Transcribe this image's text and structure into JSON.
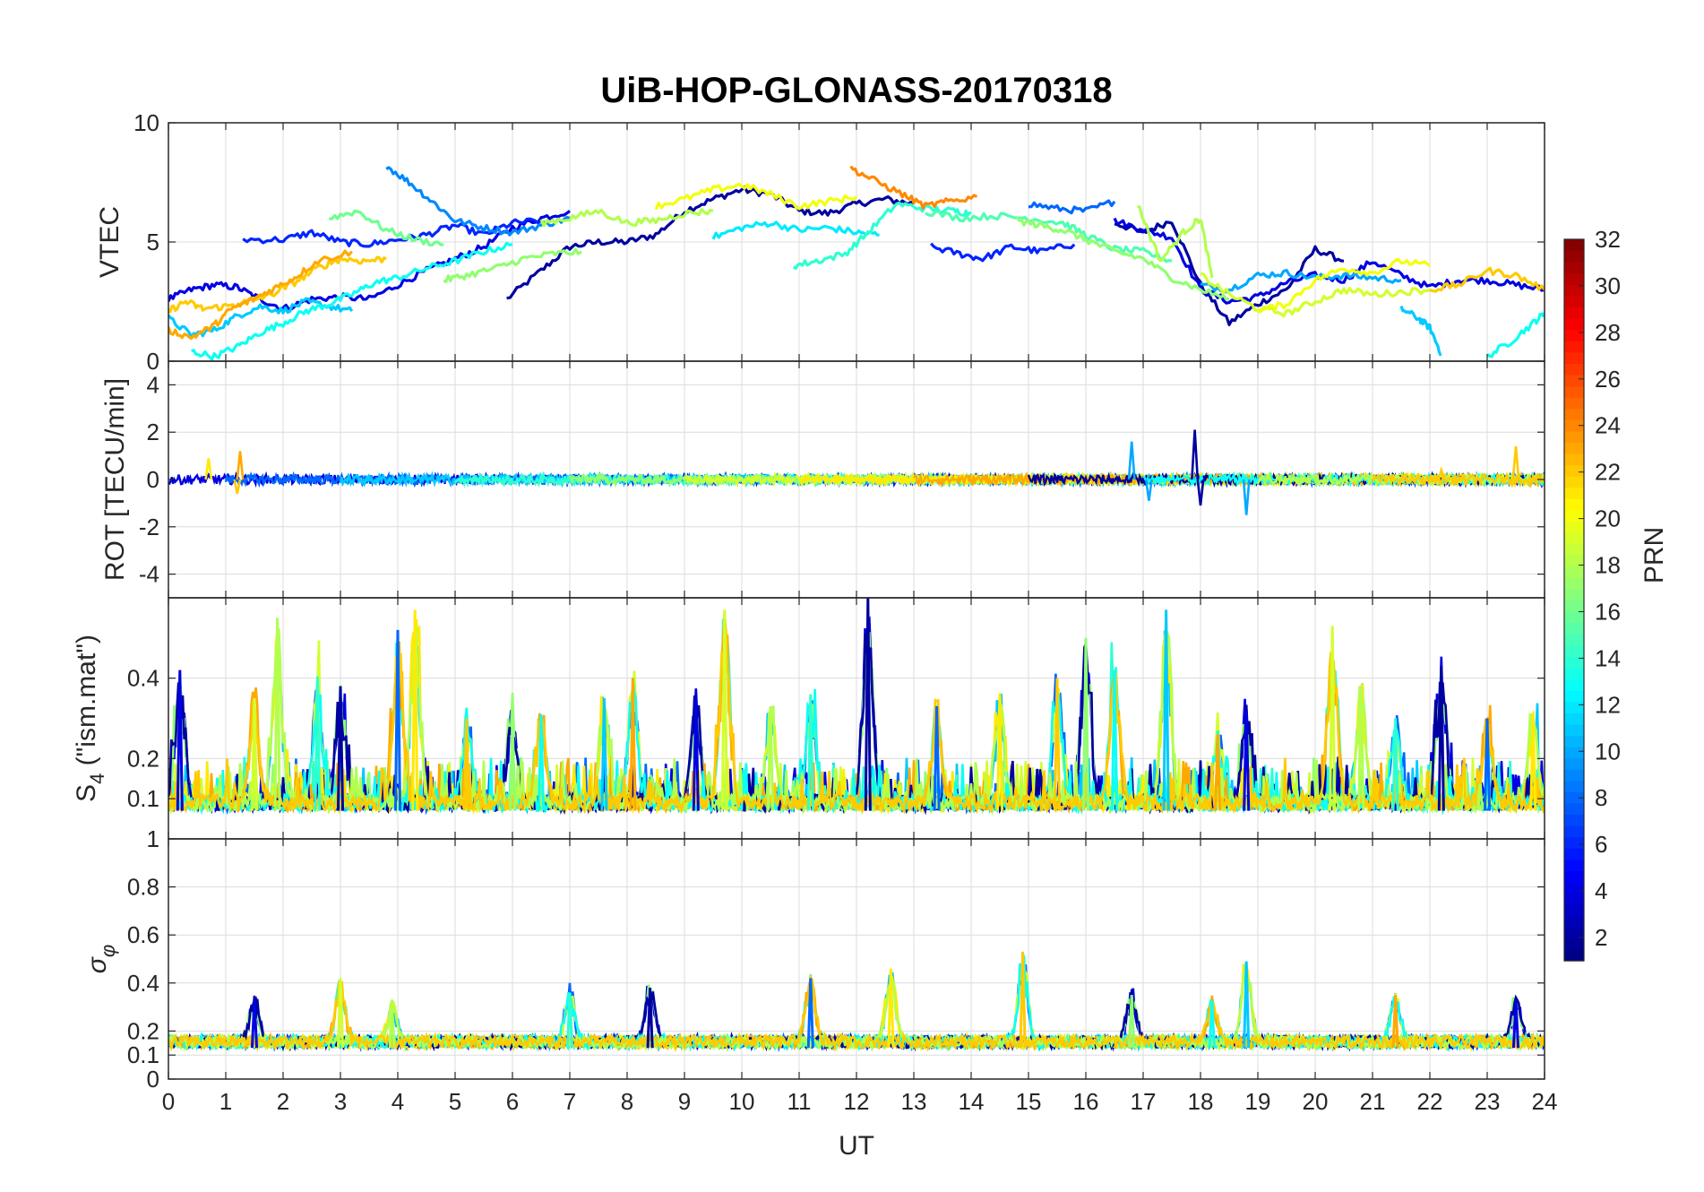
{
  "chart_data": {
    "type": "line",
    "title": "UiB-HOP-GLONASS-20170318",
    "xlabel": "UT",
    "x_ticks": [
      "0",
      "1",
      "2",
      "3",
      "4",
      "5",
      "6",
      "7",
      "8",
      "9",
      "10",
      "11",
      "12",
      "13",
      "14",
      "15",
      "16",
      "17",
      "18",
      "19",
      "20",
      "21",
      "22",
      "23",
      "24"
    ],
    "xlim": [
      0,
      24
    ],
    "colorbar": {
      "label": "PRN",
      "range": [
        1,
        32
      ],
      "ticks": [
        "2",
        "4",
        "6",
        "8",
        "10",
        "12",
        "14",
        "16",
        "18",
        "20",
        "22",
        "24",
        "26",
        "28",
        "30",
        "32"
      ],
      "colormap": "jet"
    },
    "panels": [
      {
        "name": "vtec",
        "ylabel": "VTEC",
        "ylim": [
          0,
          10
        ],
        "yticks": [
          0,
          5,
          10
        ],
        "ytick_labels": [
          "0",
          "5",
          "10"
        ],
        "series": [
          {
            "prn": 2,
            "x": [
              5.9,
              6.5,
              7,
              7.5,
              8,
              8.5,
              9,
              9.5,
              10,
              10.5,
              11,
              11.5,
              12,
              12.5,
              13
            ],
            "y": [
              2.6,
              3.8,
              4.8,
              5.0,
              5.0,
              5.3,
              6.3,
              6.8,
              7.2,
              7.0,
              6.3,
              6.2,
              6.6,
              6.8,
              6.6
            ]
          },
          {
            "prn": 2,
            "x": [
              16.5,
              17,
              17.5,
              18,
              18.5,
              19,
              19.5,
              20,
              20.5
            ],
            "y": [
              5.8,
              5.4,
              5.9,
              3.2,
              1.6,
              2.4,
              3.0,
              4.7,
              4.2
            ]
          },
          {
            "prn": 4,
            "x": [
              0,
              0.4,
              0.8,
              1.2,
              1.6,
              2,
              2.5,
              3,
              3.5,
              4,
              4.5,
              5,
              5.5,
              6,
              6.5,
              7
            ],
            "y": [
              2.6,
              3.0,
              3.2,
              3.1,
              2.6,
              2.2,
              2.6,
              2.7,
              2.6,
              3.2,
              3.8,
              4.3,
              4.8,
              5.6,
              6.0,
              6.3
            ]
          },
          {
            "prn": 4,
            "x": [
              16.5,
              17,
              17.5,
              18,
              18.5,
              19,
              19.5,
              20,
              20.5,
              21,
              21.5,
              22,
              22.5,
              23,
              23.5,
              24
            ],
            "y": [
              5.9,
              5.5,
              5.2,
              3.0,
              2.5,
              2.7,
              3.3,
              3.6,
              3.4,
              4.2,
              3.6,
              3.1,
              3.4,
              3.4,
              3.2,
              3.0
            ]
          },
          {
            "prn": 6,
            "x": [
              1.3,
              2,
              2.5,
              3,
              3.5,
              4,
              4.5,
              5,
              5.5,
              6,
              6.5
            ],
            "y": [
              5.1,
              5.1,
              5.4,
              5.0,
              4.9,
              5.1,
              5.3,
              5.7,
              5.3,
              5.8,
              5.9
            ]
          },
          {
            "prn": 6,
            "x": [
              13.3,
              13.8,
              14.2,
              14.7,
              15.2,
              15.8
            ],
            "y": [
              4.8,
              4.5,
              4.3,
              4.8,
              4.6,
              4.9
            ]
          },
          {
            "prn": 8,
            "x": [
              15,
              15.5,
              16,
              16.5
            ],
            "y": [
              6.6,
              6.4,
              6.3,
              6.7
            ]
          },
          {
            "prn": 9,
            "x": [
              3.8,
              4.2,
              4.6,
              5,
              5.5,
              6,
              6.5,
              7
            ],
            "y": [
              8.2,
              7.5,
              6.7,
              5.9,
              5.6,
              5.4,
              5.7,
              6.0
            ]
          },
          {
            "prn": 10,
            "x": [
              18,
              18.5,
              19,
              19.5,
              20,
              20.5,
              21,
              21.5
            ],
            "y": [
              3.2,
              3.0,
              3.6,
              3.7,
              3.5,
              3.6,
              3.5,
              3.4
            ]
          },
          {
            "prn": 11,
            "x": [
              0,
              0.4,
              0.8,
              1.2,
              1.6,
              2,
              2.4,
              2.8,
              3.2
            ],
            "y": [
              1.8,
              1.1,
              1.3,
              1.9,
              2.3,
              2.1,
              2.5,
              2.3,
              2.1
            ]
          },
          {
            "prn": 11,
            "x": [
              21.5,
              21.8,
              22,
              22.2
            ],
            "y": [
              2.2,
              1.8,
              1.4,
              0.3
            ]
          },
          {
            "prn": 12,
            "x": [
              9.5,
              10,
              10.5,
              11,
              11.5,
              12,
              12.4
            ],
            "y": [
              5.2,
              5.6,
              5.8,
              5.5,
              5.6,
              5.4,
              5.3
            ]
          },
          {
            "prn": 13,
            "x": [
              0.4,
              0.8,
              1.2,
              1.6,
              2,
              2.4,
              2.8,
              3.2,
              3.6,
              4,
              4.5,
              5,
              5.5,
              6
            ],
            "y": [
              0.4,
              0.2,
              0.6,
              1.2,
              1.6,
              2.1,
              2.4,
              2.8,
              3.3,
              3.5,
              3.9,
              4.2,
              4.6,
              4.9
            ]
          },
          {
            "prn": 13,
            "x": [
              23,
              23.4,
              23.8,
              24
            ],
            "y": [
              0.2,
              0.8,
              1.6,
              2.0
            ]
          },
          {
            "prn": 14,
            "x": [
              10.9,
              11.3,
              11.8,
              12.2,
              12.7,
              13.2,
              13.7,
              14
            ],
            "y": [
              4.0,
              4.2,
              4.5,
              5.4,
              6.6,
              6.4,
              6.3,
              6.2
            ]
          },
          {
            "prn": 15,
            "x": [
              13.2,
              13.8,
              14.4,
              15,
              15.6,
              16,
              16.5,
              17,
              17.5
            ],
            "y": [
              6.3,
              6.0,
              6.1,
              6.0,
              5.8,
              5.3,
              4.7,
              4.6,
              4.2
            ]
          },
          {
            "prn": 16,
            "x": [
              2.8,
              3.3,
              3.8,
              4.3,
              4.8
            ],
            "y": [
              6.0,
              6.3,
              5.5,
              5.1,
              4.9
            ]
          },
          {
            "prn": 17,
            "x": [
              4.8,
              5.2,
              5.7,
              6.2,
              6.7,
              7.2
            ],
            "y": [
              3.4,
              3.6,
              3.9,
              4.3,
              4.5,
              4.6
            ]
          },
          {
            "prn": 17,
            "x": [
              14.8,
              15.2,
              15.6,
              16,
              16.5,
              17,
              17.5,
              18,
              18.5
            ],
            "y": [
              5.9,
              5.7,
              5.5,
              5.1,
              4.6,
              4.3,
              3.5,
              3.0,
              2.6
            ]
          },
          {
            "prn": 18,
            "x": [
              6.5,
              7,
              7.5,
              8,
              8.5,
              9,
              9.5
            ],
            "y": [
              5.8,
              6.0,
              6.3,
              5.8,
              5.9,
              6.2,
              6.3
            ]
          },
          {
            "prn": 18,
            "x": [
              16.9,
              17.3,
              17.7,
              18,
              18.2
            ],
            "y": [
              6.6,
              4.2,
              5.4,
              6.0,
              3.5
            ]
          },
          {
            "prn": 19,
            "x": [
              18,
              18.5,
              19,
              19.5,
              20,
              20.5,
              21,
              21.5,
              22
            ],
            "y": [
              3.6,
              2.8,
              2.2,
              2.0,
              2.5,
              3.0,
              2.8,
              2.9,
              3.0
            ]
          },
          {
            "prn": 20,
            "x": [
              8.5,
              9,
              9.5,
              10,
              10.5,
              11,
              11.5,
              12
            ],
            "y": [
              6.5,
              6.8,
              7.2,
              7.4,
              7.0,
              6.5,
              6.7,
              6.9
            ]
          },
          {
            "prn": 20,
            "x": [
              19,
              19.5,
              20,
              20.5,
              21,
              21.5,
              22
            ],
            "y": [
              2.1,
              2.4,
              3.4,
              3.9,
              3.7,
              4.2,
              4.0
            ]
          },
          {
            "prn": 22,
            "x": [
              0,
              0.3,
              0.6,
              1,
              1.4,
              1.8,
              2.2,
              2.6,
              3,
              3.4,
              3.8
            ],
            "y": [
              2.1,
              2.5,
              2.2,
              2.3,
              2.5,
              2.8,
              3.3,
              3.9,
              4.3,
              4.2,
              4.3
            ]
          },
          {
            "prn": 22,
            "x": [
              22,
              22.5,
              23,
              23.5,
              24
            ],
            "y": [
              3.0,
              3.2,
              3.8,
              3.6,
              3.0
            ]
          },
          {
            "prn": 23,
            "x": [
              0,
              0.4,
              0.8,
              1.1,
              1.4,
              1.8,
              2.2,
              2.6,
              3.2
            ],
            "y": [
              1.3,
              1.0,
              1.5,
              2.2,
              2.5,
              3.0,
              3.5,
              4.2,
              4.6
            ]
          },
          {
            "prn": 24,
            "x": [
              11.9,
              12.3,
              12.8,
              13.2,
              13.6,
              14.1
            ],
            "y": [
              8.1,
              7.6,
              7.0,
              6.5,
              6.7,
              6.9
            ]
          }
        ]
      },
      {
        "name": "rot",
        "ylabel": "ROT [TECU/min]",
        "ylim": [
          -5,
          5
        ],
        "yticks": [
          -4,
          -2,
          0,
          2,
          4
        ],
        "ytick_labels": [
          "-4",
          "-2",
          "0",
          "2",
          "4"
        ],
        "noise_amplitude": 0.2,
        "spikes": [
          {
            "x": 0.7,
            "y": 0.9
          },
          {
            "x": 1.2,
            "y": -0.6
          },
          {
            "x": 1.25,
            "y": 1.2
          },
          {
            "x": 16.8,
            "y": 1.6
          },
          {
            "x": 17.1,
            "y": -0.9
          },
          {
            "x": 17.9,
            "y": 2.1
          },
          {
            "x": 18.0,
            "y": -1.1
          },
          {
            "x": 18.8,
            "y": -1.5
          },
          {
            "x": 22.2,
            "y": 0.4
          },
          {
            "x": 23.5,
            "y": 1.4
          }
        ]
      },
      {
        "name": "s4",
        "ylabel": "S4 (\"ism.mat\")",
        "ylim": [
          0,
          0.6
        ],
        "yticks": [
          0.1,
          0.2,
          0.4
        ],
        "ytick_labels": [
          "0.1",
          "0.2",
          "0.4"
        ],
        "baseline": 0.07,
        "peaks": [
          {
            "x": 0.2,
            "y": 0.42
          },
          {
            "x": 1.5,
            "y": 0.35
          },
          {
            "x": 1.9,
            "y": 0.55
          },
          {
            "x": 2.6,
            "y": 0.4
          },
          {
            "x": 3.0,
            "y": 0.38
          },
          {
            "x": 4.0,
            "y": 0.52
          },
          {
            "x": 4.3,
            "y": 0.57
          },
          {
            "x": 5.2,
            "y": 0.3
          },
          {
            "x": 6.0,
            "y": 0.3
          },
          {
            "x": 6.5,
            "y": 0.31
          },
          {
            "x": 7.6,
            "y": 0.35
          },
          {
            "x": 8.1,
            "y": 0.4
          },
          {
            "x": 9.2,
            "y": 0.35
          },
          {
            "x": 9.7,
            "y": 0.57
          },
          {
            "x": 10.5,
            "y": 0.33
          },
          {
            "x": 11.2,
            "y": 0.36
          },
          {
            "x": 12.2,
            "y": 0.6
          },
          {
            "x": 13.4,
            "y": 0.33
          },
          {
            "x": 14.5,
            "y": 0.36
          },
          {
            "x": 15.5,
            "y": 0.4
          },
          {
            "x": 16.0,
            "y": 0.5
          },
          {
            "x": 16.5,
            "y": 0.42
          },
          {
            "x": 17.4,
            "y": 0.57
          },
          {
            "x": 18.3,
            "y": 0.26
          },
          {
            "x": 18.8,
            "y": 0.32
          },
          {
            "x": 20.3,
            "y": 0.53
          },
          {
            "x": 20.8,
            "y": 0.38
          },
          {
            "x": 21.4,
            "y": 0.3
          },
          {
            "x": 22.2,
            "y": 0.43
          },
          {
            "x": 23.0,
            "y": 0.3
          },
          {
            "x": 23.8,
            "y": 0.3
          }
        ]
      },
      {
        "name": "sigma_phi",
        "ylabel": "σφ",
        "ylim": [
          0,
          1
        ],
        "yticks": [
          0,
          0.1,
          0.2,
          0.4,
          0.6,
          0.8,
          1
        ],
        "ytick_labels": [
          "0",
          "0.1",
          "0.2",
          "0.4",
          "0.6",
          "0.8",
          "1"
        ],
        "baseline": 0.13,
        "peaks": [
          {
            "x": 1.5,
            "y": 0.33
          },
          {
            "x": 3.0,
            "y": 0.42
          },
          {
            "x": 3.9,
            "y": 0.3
          },
          {
            "x": 7.0,
            "y": 0.36
          },
          {
            "x": 8.4,
            "y": 0.38
          },
          {
            "x": 11.2,
            "y": 0.42
          },
          {
            "x": 12.6,
            "y": 0.46
          },
          {
            "x": 14.9,
            "y": 0.53
          },
          {
            "x": 16.8,
            "y": 0.35
          },
          {
            "x": 18.2,
            "y": 0.33
          },
          {
            "x": 18.8,
            "y": 0.49
          },
          {
            "x": 21.4,
            "y": 0.35
          },
          {
            "x": 23.5,
            "y": 0.33
          }
        ]
      }
    ]
  }
}
